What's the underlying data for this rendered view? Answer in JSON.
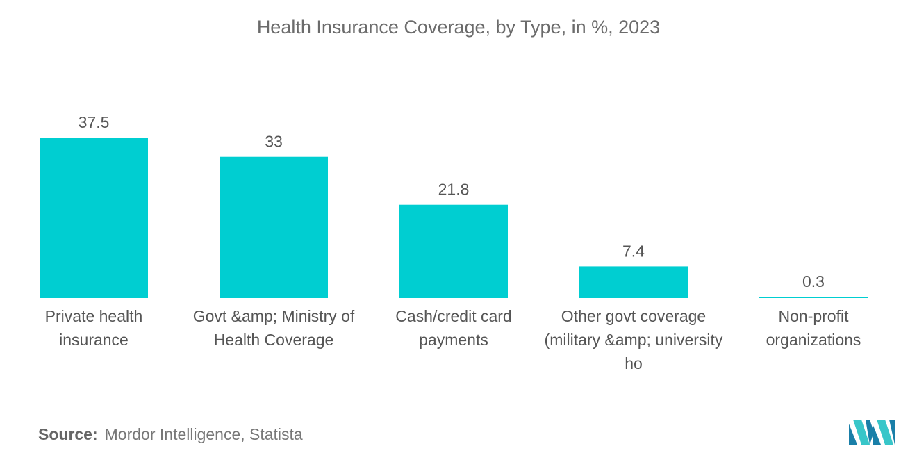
{
  "chart_data": {
    "type": "bar",
    "title": "Health Insurance Coverage, by Type, in %, 2023",
    "categories": [
      "Private health insurance",
      "Govt &amp; Ministry of Health Coverage",
      "Cash/credit card payments",
      "Other govt coverage (military &amp; university ho",
      "Non-profit organizations"
    ],
    "values": [
      37.5,
      33,
      21.8,
      7.4,
      0.3
    ],
    "value_labels": [
      "37.5",
      "33",
      "21.8",
      "7.4",
      "0.3"
    ],
    "xlabel": "",
    "ylabel": "",
    "ylim": [
      0,
      37.5
    ],
    "grid": false,
    "legend": "none",
    "bar_color": "#00CED1"
  },
  "source": {
    "label": "Source:",
    "text": "Mordor Intelligence, Statista"
  },
  "colors": {
    "bar": "#00CED1",
    "logo_dark": "#1a7fa8",
    "logo_light": "#38c6c9"
  }
}
